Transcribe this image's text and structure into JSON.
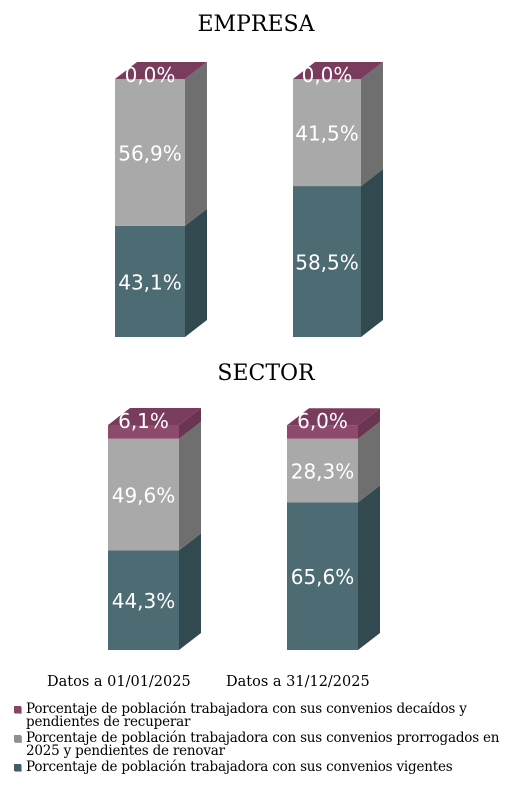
{
  "chart_data": [
    {
      "type": "bar",
      "stacked": true,
      "title": "EMPRESA",
      "categories": [
        "Datos a 01/01/2025",
        "Datos a 31/12/2025"
      ],
      "series": [
        {
          "name": "Porcentaje de población trabajadora con sus convenios vigentes",
          "values": [
            43.1,
            58.5
          ],
          "labels": [
            "43,1%",
            "58,5%"
          ]
        },
        {
          "name": "Porcentaje de población trabajadora con sus convenios prorrogados en 2025 y pendientes de renovar",
          "values": [
            56.9,
            41.5
          ],
          "labels": [
            "56,9%",
            "41,5%"
          ]
        },
        {
          "name": "Porcentaje de población trabajadora con sus convenios decaídos y pendientes de recuperar",
          "values": [
            0.0,
            0.0
          ],
          "labels": [
            "0,0%",
            "0,0%"
          ]
        }
      ],
      "ylim": [
        0,
        100
      ]
    },
    {
      "type": "bar",
      "stacked": true,
      "title": "SECTOR",
      "categories": [
        "Datos a 01/01/2025",
        "Datos a 31/12/2025"
      ],
      "series": [
        {
          "name": "Porcentaje de población trabajadora con sus convenios vigentes",
          "values": [
            44.3,
            65.6
          ],
          "labels": [
            "44,3%",
            "65,6%"
          ]
        },
        {
          "name": "Porcentaje de población trabajadora con sus convenios prorrogados en 2025 y pendientes de renovar",
          "values": [
            49.6,
            28.3
          ],
          "labels": [
            "49,6%",
            "28,3%"
          ]
        },
        {
          "name": "Porcentaje de población trabajadora con sus convenios decaídos y pendientes de recuperar",
          "values": [
            6.1,
            6.0
          ],
          "labels": [
            "6,1%",
            "6,0%"
          ]
        }
      ],
      "ylim": [
        0,
        100
      ]
    }
  ],
  "categories": [
    "Datos a 01/01/2025",
    "Datos a 31/12/2025"
  ],
  "legend": [
    {
      "label": "Porcentaje de población trabajadora con sus convenios decaídos y pendientes de recuperar",
      "color": "#8b4466"
    },
    {
      "label": "Porcentaje de población trabajadora con sus convenios prorrogados en 2025 y pendientes de renovar",
      "color": "#8f8f8f"
    },
    {
      "label": "Porcentaje de población trabajadora con sus convenios vigentes",
      "color": "#3f5e66"
    }
  ],
  "colors": {
    "vigentes": {
      "front": "#4d6b73",
      "side": "#334950",
      "top": "#5d7c84"
    },
    "prorrogados": {
      "front": "#a9a9a9",
      "side": "#6f6f6f",
      "top": "#c4c4c4"
    },
    "decaidos": {
      "front": "#8e4a6c",
      "side": "#6a3550",
      "top": "#7a3c5c"
    }
  }
}
